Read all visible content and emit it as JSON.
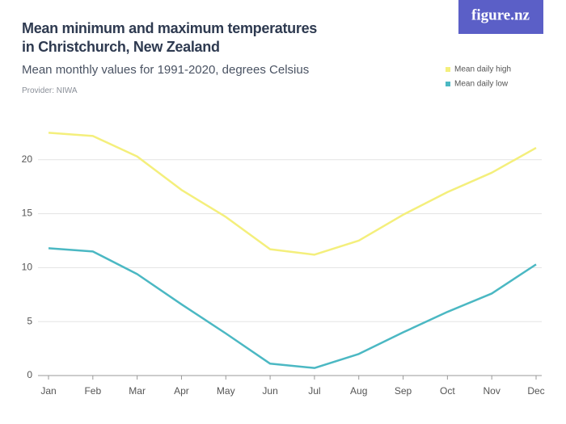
{
  "chart_data": {
    "type": "line",
    "title": "Mean minimum and maximum temperatures in Christchurch, New Zealand",
    "subtitle": "Mean monthly values for 1991-2020, degrees Celsius",
    "source": "Provider: NIWA",
    "logo": "figure.nz",
    "categories": [
      "Jan",
      "Feb",
      "Mar",
      "Apr",
      "May",
      "Jun",
      "Jul",
      "Aug",
      "Sep",
      "Oct",
      "Nov",
      "Dec"
    ],
    "series": [
      {
        "name": "Mean daily high",
        "color": "#f4ef7c",
        "values": [
          22.5,
          22.2,
          20.3,
          17.2,
          14.7,
          11.7,
          11.2,
          12.5,
          14.9,
          17.0,
          18.8,
          21.1
        ]
      },
      {
        "name": "Mean daily low",
        "color": "#4bb8c3",
        "values": [
          11.8,
          11.5,
          9.4,
          6.6,
          3.9,
          1.1,
          0.7,
          2.0,
          4.0,
          5.9,
          7.6,
          10.3
        ]
      }
    ],
    "ylim": [
      0,
      23.5
    ],
    "yticks": [
      0,
      5,
      10,
      15,
      20
    ],
    "grid": true,
    "legend": "top-right"
  }
}
